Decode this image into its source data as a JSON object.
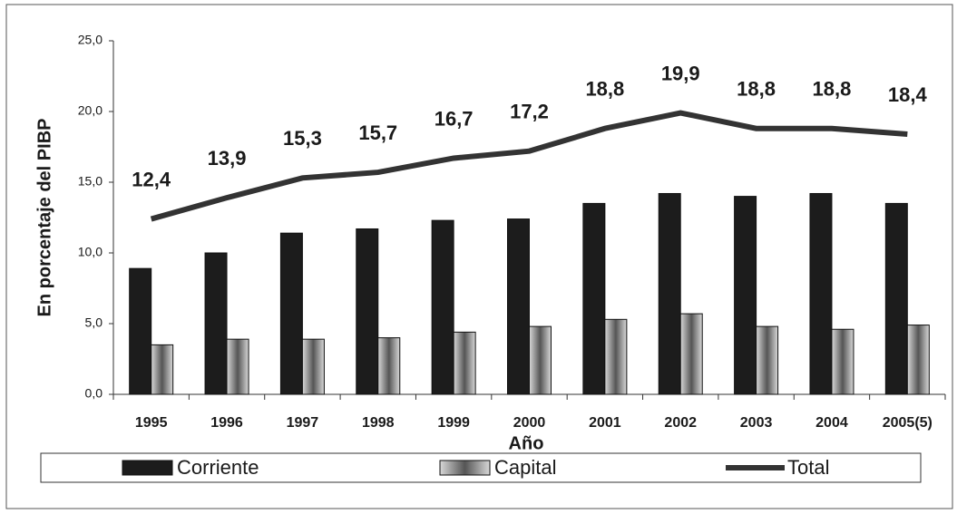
{
  "chart_data": {
    "type": "bar",
    "y_label": "En porcentaje del PIBP",
    "x_label": "Año",
    "categories": [
      "1995",
      "1996",
      "1997",
      "1998",
      "1999",
      "2000",
      "2001",
      "2002",
      "2003",
      "2004",
      "2005(5)"
    ],
    "series": [
      {
        "name": "Corriente",
        "type": "bar",
        "color": "#1c1c1c",
        "values": [
          8.9,
          10.0,
          11.4,
          11.7,
          12.3,
          12.4,
          13.5,
          14.2,
          14.0,
          14.2,
          13.5
        ]
      },
      {
        "name": "Capital",
        "type": "bar",
        "color": "#b4b4b4",
        "values": [
          3.5,
          3.9,
          3.9,
          4.0,
          4.4,
          4.8,
          5.3,
          5.7,
          4.8,
          4.6,
          4.9
        ]
      },
      {
        "name": "Total",
        "type": "line",
        "color": "#333333",
        "values": [
          12.4,
          13.9,
          15.3,
          15.7,
          16.7,
          17.2,
          18.8,
          19.9,
          18.8,
          18.8,
          18.4
        ],
        "value_labels": [
          "12,4",
          "13,9",
          "15,3",
          "15,7",
          "16,7",
          "17,2",
          "18,8",
          "19,9",
          "18,8",
          "18,8",
          "18,4"
        ]
      }
    ],
    "ylim": [
      0,
      25
    ],
    "yticks": [
      {
        "value": 0,
        "label": "0,0"
      },
      {
        "value": 5,
        "label": "5,0"
      },
      {
        "value": 10,
        "label": "10,0"
      },
      {
        "value": 15,
        "label": "15,0"
      },
      {
        "value": 20,
        "label": "20,0"
      },
      {
        "value": 25,
        "label": "25,0"
      }
    ],
    "grid": false,
    "legend": "bottom"
  }
}
